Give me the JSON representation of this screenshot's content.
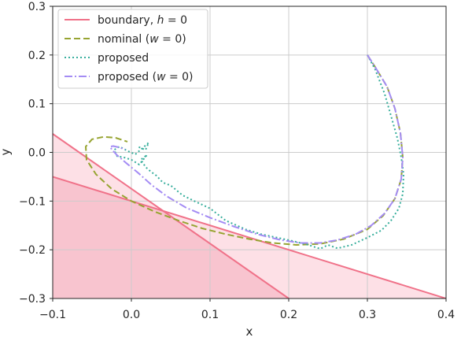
{
  "chart_data": {
    "type": "line",
    "xlabel": "x",
    "ylabel": "y",
    "xlim": [
      -0.1,
      0.4
    ],
    "ylim": [
      -0.3,
      0.3
    ],
    "xticks": [
      -0.1,
      0.0,
      0.1,
      0.2,
      0.3,
      0.4
    ],
    "yticks": [
      -0.3,
      -0.2,
      -0.1,
      0.0,
      0.1,
      0.2,
      0.3
    ],
    "xtick_labels": [
      "−0.1",
      "0.0",
      "0.1",
      "0.2",
      "0.3",
      "0.4"
    ],
    "ytick_labels": [
      "−0.3",
      "−0.2",
      "−0.1",
      "0.0",
      "0.1",
      "0.2",
      "0.3"
    ],
    "grid": true,
    "legend_position": "top-left",
    "colors": {
      "boundary": "#f07289",
      "nominal": "#97a431",
      "proposed": "#37ae9c",
      "proposed_w0": "#a48cf4",
      "region_light": "#fde0e6",
      "region_dark": "#f8c4cf"
    },
    "boundary_lines": [
      {
        "x": [
          -0.1,
          0.2
        ],
        "y": [
          0.038,
          -0.3
        ]
      },
      {
        "x": [
          -0.1,
          0.4
        ],
        "y": [
          -0.05,
          -0.3
        ]
      }
    ],
    "series": [
      {
        "name": "boundary, h = 0",
        "style": "solid",
        "x": [],
        "y": []
      },
      {
        "name": "nominal (w = 0)",
        "style": "dashed",
        "x": [
          0.3,
          0.31,
          0.325,
          0.335,
          0.342,
          0.345,
          0.343,
          0.335,
          0.32,
          0.3,
          0.27,
          0.24,
          0.21,
          0.18,
          0.15,
          0.12,
          0.09,
          0.06,
          0.03,
          0.0,
          -0.025,
          -0.045,
          -0.057,
          -0.058,
          -0.05,
          -0.035,
          -0.02,
          -0.005
        ],
        "y": [
          0.2,
          0.175,
          0.135,
          0.09,
          0.04,
          -0.01,
          -0.055,
          -0.095,
          -0.13,
          -0.158,
          -0.178,
          -0.188,
          -0.19,
          -0.186,
          -0.178,
          -0.168,
          -0.156,
          -0.14,
          -0.122,
          -0.1,
          -0.075,
          -0.045,
          -0.015,
          0.012,
          0.027,
          0.032,
          0.03,
          0.022
        ]
      },
      {
        "name": "proposed",
        "style": "dotted",
        "x": [
          0.3,
          0.31,
          0.322,
          0.33,
          0.338,
          0.343,
          0.346,
          0.345,
          0.34,
          0.33,
          0.318,
          0.3,
          0.28,
          0.262,
          0.25,
          0.24,
          0.225,
          0.205,
          0.185,
          0.165,
          0.145,
          0.12,
          0.1,
          0.08,
          0.065,
          0.05,
          0.04,
          0.032,
          0.025,
          0.018,
          0.012,
          0.02,
          0.01,
          0.0,
          -0.01,
          -0.018,
          -0.022,
          -0.015,
          -0.005,
          0.005,
          0.015,
          0.022,
          0.018,
          0.008
        ],
        "y": [
          0.2,
          0.17,
          0.12,
          0.075,
          0.03,
          -0.01,
          -0.045,
          -0.085,
          -0.115,
          -0.14,
          -0.16,
          -0.175,
          -0.19,
          -0.197,
          -0.19,
          -0.198,
          -0.19,
          -0.182,
          -0.175,
          -0.168,
          -0.158,
          -0.14,
          -0.115,
          -0.1,
          -0.088,
          -0.068,
          -0.062,
          -0.048,
          -0.04,
          -0.03,
          -0.015,
          -0.005,
          -0.025,
          -0.015,
          -0.01,
          -0.008,
          0.005,
          0.012,
          0.003,
          -0.004,
          0.01,
          0.02,
          0.005,
          0.012
        ]
      },
      {
        "name": "proposed (w = 0)",
        "style": "dashdot",
        "x": [
          0.3,
          0.31,
          0.325,
          0.335,
          0.342,
          0.345,
          0.343,
          0.335,
          0.322,
          0.305,
          0.285,
          0.262,
          0.24,
          0.215,
          0.19,
          0.16,
          0.13,
          0.1,
          0.07,
          0.045,
          0.025,
          0.01,
          -0.005,
          -0.018,
          -0.025,
          -0.027,
          -0.023,
          -0.015,
          -0.008
        ],
        "y": [
          0.2,
          0.175,
          0.135,
          0.09,
          0.04,
          -0.01,
          -0.055,
          -0.095,
          -0.125,
          -0.15,
          -0.168,
          -0.18,
          -0.186,
          -0.186,
          -0.18,
          -0.168,
          -0.152,
          -0.134,
          -0.114,
          -0.09,
          -0.066,
          -0.044,
          -0.024,
          -0.006,
          0.006,
          0.012,
          0.013,
          0.01,
          0.006
        ]
      }
    ],
    "legend": [
      {
        "label": "boundary, ",
        "math": "h",
        "suffix": " = 0"
      },
      {
        "label": "nominal (",
        "math": "w",
        "suffix": " = 0)"
      },
      {
        "label": "proposed",
        "math": "",
        "suffix": ""
      },
      {
        "label": "proposed (",
        "math": "w",
        "suffix": " = 0)"
      }
    ]
  }
}
